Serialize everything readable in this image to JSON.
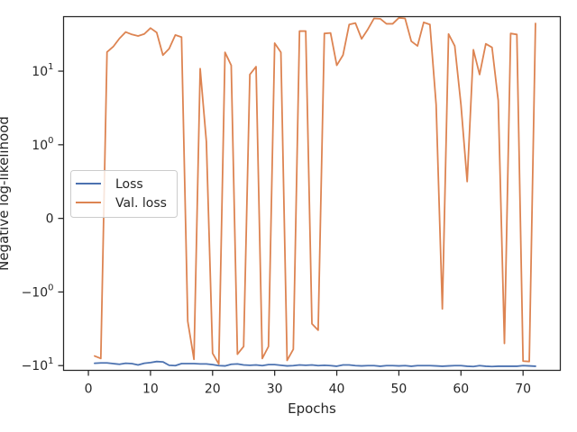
{
  "chart_data": {
    "type": "line",
    "title": "",
    "xlabel": "Epochs",
    "ylabel": "Negative log-likelihood",
    "yscale": "symlog",
    "xlim": [
      -4,
      76
    ],
    "x_ticks": [
      0,
      10,
      20,
      30,
      40,
      50,
      60,
      70
    ],
    "y_ticks": [
      {
        "value": 10,
        "base": "10",
        "exp": "1",
        "sign": ""
      },
      {
        "value": 1,
        "base": "10",
        "exp": "0",
        "sign": ""
      },
      {
        "value": 0,
        "text": "0"
      },
      {
        "value": -1,
        "base": "10",
        "exp": "0",
        "sign": "−"
      },
      {
        "value": -10,
        "base": "10",
        "exp": "1",
        "sign": "−"
      }
    ],
    "legend": {
      "position": "center-left"
    },
    "grid": false,
    "colors": {
      "loss": "#4c72b0",
      "val_loss": "#dd8452"
    },
    "series": [
      {
        "name": "Loss",
        "x": [
          1,
          2,
          3,
          4,
          5,
          6,
          7,
          8,
          9,
          10,
          11,
          12,
          13,
          14,
          15,
          16,
          17,
          18,
          19,
          20,
          21,
          22,
          23,
          24,
          25,
          26,
          27,
          28,
          29,
          30,
          31,
          32,
          33,
          34,
          35,
          36,
          37,
          38,
          39,
          40,
          41,
          42,
          43,
          44,
          45,
          46,
          47,
          48,
          49,
          50,
          51,
          52,
          53,
          54,
          55,
          56,
          57,
          58,
          59,
          60,
          61,
          62,
          63,
          64,
          65,
          66,
          67,
          68,
          69,
          70,
          71,
          72
        ],
        "y": [
          -9.3,
          -9.2,
          -9.2,
          -9.4,
          -9.6,
          -9.3,
          -9.4,
          -9.8,
          -9.3,
          -9.1,
          -8.8,
          -8.9,
          -9.9,
          -10.0,
          -9.4,
          -9.4,
          -9.4,
          -9.5,
          -9.5,
          -9.7,
          -10.0,
          -10.1,
          -9.6,
          -9.5,
          -9.8,
          -9.9,
          -9.8,
          -10.0,
          -9.7,
          -9.7,
          -9.9,
          -10.1,
          -10.0,
          -9.8,
          -9.9,
          -9.8,
          -10.0,
          -9.9,
          -10.0,
          -10.2,
          -9.8,
          -9.8,
          -10.0,
          -10.1,
          -10.0,
          -10.0,
          -10.2,
          -10.0,
          -10.0,
          -10.1,
          -10.0,
          -10.2,
          -10.0,
          -10.0,
          -10.0,
          -10.1,
          -10.2,
          -10.1,
          -10.0,
          -10.0,
          -10.2,
          -10.3,
          -10.0,
          -10.2,
          -10.3,
          -10.2,
          -10.2,
          -10.2,
          -10.2,
          -10.0,
          -10.1,
          -10.2
        ]
      },
      {
        "name": "Val. loss",
        "x": [
          1,
          2,
          3,
          4,
          5,
          6,
          7,
          8,
          9,
          10,
          11,
          12,
          13,
          14,
          15,
          16,
          17,
          18,
          19,
          20,
          21,
          22,
          23,
          24,
          25,
          26,
          27,
          28,
          29,
          30,
          31,
          32,
          33,
          34,
          35,
          36,
          37,
          38,
          39,
          40,
          41,
          42,
          43,
          44,
          45,
          46,
          47,
          48,
          49,
          50,
          51,
          52,
          53,
          54,
          55,
          56,
          57,
          58,
          59,
          60,
          61,
          62,
          63,
          64,
          65,
          66,
          67,
          68,
          69,
          70,
          71,
          72
        ],
        "y": [
          -7.4,
          -8.0,
          18.2,
          21.5,
          27.8,
          34.0,
          31.5,
          30.0,
          32.0,
          38.5,
          33.5,
          16.5,
          20.2,
          31.0,
          29.0,
          -2.5,
          -8.2,
          10.8,
          1.1,
          -6.8,
          -9.5,
          18.0,
          12.0,
          -7.0,
          -5.5,
          9.0,
          11.5,
          -8.0,
          -5.5,
          24.0,
          18.0,
          -8.5,
          -6.0,
          35.0,
          35.0,
          -2.7,
          -3.3,
          32.5,
          33.0,
          12.0,
          16.5,
          43.0,
          45.0,
          27.5,
          37.0,
          52.0,
          51.5,
          44.0,
          44.0,
          53.0,
          52.0,
          25.5,
          22.0,
          46.0,
          43.0,
          3.5,
          -1.7,
          32.0,
          22.0,
          3.5,
          0.5,
          19.5,
          9.0,
          23.5,
          21.0,
          4.0,
          -5.0,
          32.5,
          31.5,
          -8.7,
          -8.8,
          44.5
        ]
      }
    ]
  }
}
